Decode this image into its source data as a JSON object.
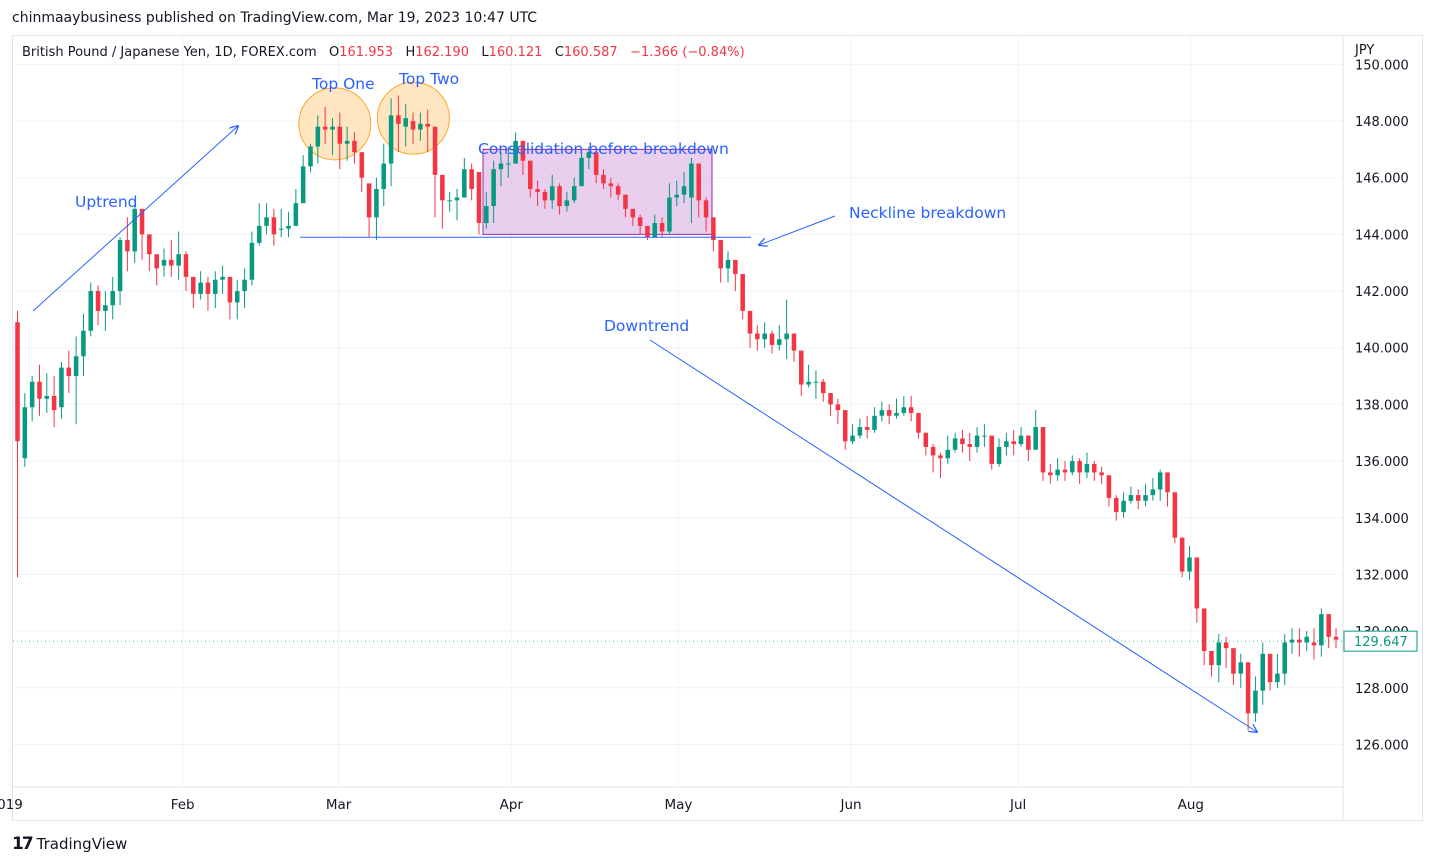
{
  "publisher_line": "chinmaaybusiness published on TradingView.com, Mar 19, 2023 10:47 UTC",
  "symbol": {
    "name": "British Pound / Japanese Yen, 1D, FOREX.com",
    "o_label": "O",
    "o": "161.953",
    "h_label": "H",
    "h": "162.190",
    "l_label": "L",
    "l": "160.121",
    "c_label": "C",
    "c": "160.587",
    "change": "−1.366 (−0.84%)"
  },
  "footer": {
    "logo": "17",
    "brand": "TradingView"
  },
  "colors": {
    "up": "#089981",
    "down": "#f23645",
    "annotation": "#2962ff",
    "circle_fill": "#ffe0b2",
    "circle_stroke": "#ffa726",
    "box_fill": "#e1bee7",
    "box_stroke": "#9c27b0",
    "grid": "#f0f3fa"
  },
  "chart_data": {
    "type": "candlestick",
    "currency": "JPY",
    "ylim": [
      124.5,
      151
    ],
    "y_ticks": [
      "150.000",
      "148.000",
      "146.000",
      "144.000",
      "142.000",
      "140.000",
      "138.000",
      "136.000",
      "134.000",
      "132.000",
      "130.000",
      "128.000",
      "126.000"
    ],
    "x_ticks": [
      {
        "label": "019",
        "date": "2023-01-01"
      },
      {
        "label": "Feb",
        "date": "2023-02-01"
      },
      {
        "label": "Mar",
        "date": "2023-03-01"
      },
      {
        "label": "Apr",
        "date": "2023-04-01"
      },
      {
        "label": "May",
        "date": "2023-05-01"
      },
      {
        "label": "Jun",
        "date": "2023-06-01"
      },
      {
        "label": "Jul",
        "date": "2023-07-01"
      },
      {
        "label": "Aug",
        "date": "2023-08-01"
      }
    ],
    "last_price": "129.647",
    "annotations": {
      "uptrend": "Uptrend",
      "top_one": "Top One",
      "top_two": "Top Two",
      "consolidation": "Consolidation before breakdown",
      "neckline": "Neckline breakdown",
      "downtrend": "Downtrend"
    },
    "neckline_level": 143.9,
    "consolidation_range": [
      144.0,
      147.0
    ],
    "candles": [
      [
        140.9,
        136.7,
        141.3,
        131.9
      ],
      [
        136.1,
        137.9,
        138.4,
        135.8
      ],
      [
        137.9,
        138.8,
        139.0,
        137.4
      ],
      [
        138.8,
        138.2,
        139.4,
        137.6
      ],
      [
        138.2,
        138.3,
        139.1,
        137.7
      ],
      [
        138.3,
        137.8,
        139.0,
        137.2
      ],
      [
        137.9,
        139.3,
        139.5,
        137.5
      ],
      [
        139.3,
        139.0,
        139.9,
        138.4
      ],
      [
        139.0,
        139.7,
        140.4,
        137.3
      ],
      [
        139.7,
        140.6,
        141.2,
        139.0
      ],
      [
        140.6,
        142.0,
        142.3,
        140.4
      ],
      [
        142.0,
        141.3,
        142.2,
        140.8
      ],
      [
        141.3,
        141.5,
        142.0,
        140.6
      ],
      [
        141.5,
        142.0,
        142.5,
        141.0
      ],
      [
        142.0,
        143.8,
        143.9,
        141.5
      ],
      [
        143.8,
        143.4,
        144.6,
        142.7
      ],
      [
        143.4,
        144.9,
        145.0,
        143.0
      ],
      [
        144.9,
        144.0,
        144.9,
        143.1
      ],
      [
        144.0,
        143.3,
        143.7,
        142.7
      ],
      [
        143.3,
        142.8,
        143.2,
        142.2
      ],
      [
        142.9,
        143.1,
        143.5,
        142.5
      ],
      [
        143.1,
        142.9,
        143.8,
        142.5
      ],
      [
        142.9,
        143.3,
        144.1,
        142.4
      ],
      [
        143.3,
        142.5,
        143.4,
        142.0
      ],
      [
        142.5,
        141.9,
        142.3,
        141.4
      ],
      [
        141.9,
        142.3,
        142.7,
        141.7
      ],
      [
        142.3,
        141.9,
        142.5,
        141.3
      ],
      [
        141.9,
        142.4,
        142.7,
        141.4
      ],
      [
        142.4,
        142.5,
        142.9,
        141.9
      ],
      [
        142.5,
        141.6,
        141.8,
        141.0
      ],
      [
        141.6,
        142.0,
        142.4,
        141.0
      ],
      [
        142.0,
        142.4,
        142.8,
        141.4
      ],
      [
        142.4,
        143.7,
        144.1,
        142.2
      ],
      [
        143.7,
        144.3,
        145.1,
        143.6
      ],
      [
        144.3,
        144.6,
        145.1,
        144.0
      ],
      [
        144.6,
        144.0,
        144.9,
        143.6
      ],
      [
        144.2,
        144.2,
        144.9,
        143.9
      ],
      [
        144.2,
        144.3,
        144.8,
        143.9
      ],
      [
        144.3,
        145.1,
        145.6,
        144.8
      ],
      [
        145.1,
        146.4,
        146.8,
        145.1
      ],
      [
        146.4,
        147.1,
        147.2,
        146.2
      ],
      [
        147.1,
        147.8,
        148.2,
        146.5
      ],
      [
        147.8,
        147.7,
        148.5,
        147.2
      ],
      [
        147.7,
        147.8,
        148.1,
        146.8
      ],
      [
        147.8,
        147.2,
        148.3,
        146.3
      ],
      [
        147.2,
        147.3,
        147.8,
        146.6
      ],
      [
        147.3,
        146.9,
        147.6,
        146.5
      ],
      [
        146.9,
        146.0,
        146.3,
        145.5
      ],
      [
        145.8,
        144.6,
        145.6,
        143.9
      ],
      [
        144.6,
        145.6,
        146.0,
        143.8
      ],
      [
        145.6,
        146.5,
        147.2,
        145.0
      ],
      [
        146.5,
        148.2,
        148.8,
        145.7
      ],
      [
        148.2,
        147.9,
        148.9,
        146.9
      ],
      [
        147.8,
        148.1,
        148.6,
        147.1
      ],
      [
        148.0,
        147.7,
        148.3,
        147.2
      ],
      [
        147.7,
        147.9,
        148.3,
        147.3
      ],
      [
        147.9,
        147.8,
        148.4,
        146.9
      ],
      [
        147.8,
        146.1,
        146.6,
        144.6
      ],
      [
        146.1,
        145.2,
        145.9,
        144.2
      ],
      [
        145.2,
        145.2,
        145.5,
        144.8
      ],
      [
        145.2,
        145.3,
        145.6,
        144.5
      ],
      [
        145.3,
        146.3,
        146.7,
        145.6
      ],
      [
        146.3,
        145.6,
        146.5,
        145.2
      ],
      [
        146.2,
        144.4,
        144.9,
        144.0
      ],
      [
        144.4,
        145.0,
        145.5,
        144.2
      ],
      [
        145.0,
        146.3,
        146.6,
        144.4
      ],
      [
        146.3,
        146.5,
        146.9,
        145.7
      ],
      [
        146.5,
        146.5,
        147.1,
        146.0
      ],
      [
        146.5,
        147.3,
        147.6,
        146.7
      ],
      [
        147.3,
        146.6,
        147.1,
        146.1
      ],
      [
        146.6,
        145.6,
        146.2,
        145.3
      ],
      [
        145.6,
        145.5,
        145.9,
        145.0
      ],
      [
        145.5,
        145.2,
        145.6,
        144.9
      ],
      [
        145.2,
        145.7,
        146.1,
        144.9
      ],
      [
        145.7,
        145.0,
        145.8,
        144.7
      ],
      [
        145.0,
        145.2,
        145.5,
        144.8
      ],
      [
        145.2,
        145.7,
        146.0,
        145.1
      ],
      [
        145.7,
        146.7,
        146.9,
        146.1
      ],
      [
        146.7,
        146.9,
        147.1,
        146.3
      ],
      [
        146.9,
        146.1,
        146.4,
        145.8
      ],
      [
        146.1,
        145.8,
        146.3,
        145.6
      ],
      [
        145.8,
        145.7,
        146.0,
        145.3
      ],
      [
        145.7,
        145.4,
        145.8,
        145.2
      ],
      [
        145.4,
        144.9,
        145.1,
        144.6
      ],
      [
        144.9,
        144.6,
        144.9,
        144.3
      ],
      [
        144.6,
        144.3,
        144.7,
        144.0
      ],
      [
        144.3,
        143.9,
        144.3,
        143.8
      ],
      [
        143.9,
        144.4,
        144.7,
        143.9
      ],
      [
        144.4,
        144.1,
        144.6,
        143.9
      ],
      [
        144.1,
        145.3,
        145.8,
        144.0
      ],
      [
        145.3,
        145.4,
        145.9,
        145.0
      ],
      [
        145.4,
        145.7,
        146.2,
        145.1
      ],
      [
        145.3,
        146.5,
        146.7,
        144.4
      ],
      [
        146.5,
        145.2,
        145.8,
        144.6
      ],
      [
        145.2,
        144.6,
        145.3,
        144.1
      ],
      [
        144.6,
        143.8,
        144.2,
        143.4
      ],
      [
        143.8,
        142.8,
        143.7,
        142.3
      ],
      [
        142.8,
        143.1,
        143.4,
        142.3
      ],
      [
        143.1,
        142.6,
        143.1,
        142.0
      ],
      [
        142.6,
        141.3,
        141.9,
        141.0
      ],
      [
        141.3,
        140.5,
        140.8,
        140.0
      ],
      [
        140.5,
        140.3,
        140.8,
        139.9
      ],
      [
        140.3,
        140.5,
        140.9,
        140.0
      ],
      [
        140.5,
        140.1,
        140.6,
        139.8
      ],
      [
        140.1,
        140.3,
        140.8,
        139.9
      ],
      [
        140.3,
        140.5,
        141.7,
        139.6
      ],
      [
        140.5,
        139.9,
        140.4,
        139.5
      ],
      [
        139.9,
        138.7,
        139.4,
        138.3
      ],
      [
        138.7,
        138.8,
        139.4,
        138.6
      ],
      [
        138.8,
        138.8,
        139.2,
        138.2
      ],
      [
        138.8,
        138.4,
        138.9,
        138.1
      ],
      [
        138.4,
        138.0,
        138.4,
        137.6
      ],
      [
        138.0,
        137.8,
        138.2,
        137.3
      ],
      [
        137.8,
        136.7,
        137.3,
        136.4
      ],
      [
        136.7,
        136.9,
        137.3,
        136.6
      ],
      [
        136.9,
        137.2,
        137.5,
        136.8
      ],
      [
        137.2,
        137.1,
        137.6,
        136.8
      ],
      [
        137.1,
        137.6,
        137.9,
        137.0
      ],
      [
        137.6,
        137.8,
        138.1,
        137.4
      ],
      [
        137.8,
        137.6,
        138.0,
        137.3
      ],
      [
        137.6,
        137.7,
        138.2,
        137.5
      ],
      [
        137.7,
        137.9,
        138.3,
        137.6
      ],
      [
        137.9,
        137.7,
        138.3,
        137.4
      ],
      [
        137.7,
        137.0,
        137.4,
        136.8
      ],
      [
        137.0,
        136.5,
        137.0,
        136.2
      ],
      [
        136.5,
        136.2,
        136.6,
        135.6
      ],
      [
        136.2,
        136.1,
        136.3,
        135.4
      ],
      [
        136.1,
        136.4,
        136.9,
        135.9
      ],
      [
        136.4,
        136.8,
        137.0,
        136.3
      ],
      [
        136.8,
        136.6,
        137.1,
        136.3
      ],
      [
        136.6,
        136.5,
        137.0,
        136.0
      ],
      [
        136.5,
        136.9,
        137.2,
        136.3
      ],
      [
        136.9,
        136.9,
        137.3,
        136.5
      ],
      [
        136.9,
        135.9,
        136.3,
        135.7
      ],
      [
        135.9,
        136.5,
        136.8,
        135.8
      ],
      [
        136.5,
        136.7,
        137.0,
        136.2
      ],
      [
        136.7,
        136.6,
        137.1,
        136.2
      ],
      [
        136.6,
        136.9,
        137.2,
        136.5
      ],
      [
        136.9,
        136.4,
        136.9,
        136.0
      ],
      [
        136.4,
        137.2,
        137.8,
        136.4
      ],
      [
        137.2,
        135.6,
        136.0,
        135.3
      ],
      [
        135.6,
        135.5,
        135.9,
        135.2
      ],
      [
        135.5,
        135.7,
        136.1,
        135.3
      ],
      [
        135.7,
        135.6,
        136.0,
        135.3
      ],
      [
        135.6,
        136.0,
        136.2,
        135.5
      ],
      [
        136.0,
        135.6,
        136.1,
        135.2
      ],
      [
        135.6,
        135.9,
        136.3,
        135.4
      ],
      [
        135.9,
        135.6,
        136.0,
        135.3
      ],
      [
        135.6,
        135.5,
        135.8,
        135.2
      ],
      [
        135.5,
        134.7,
        135.2,
        134.4
      ],
      [
        134.7,
        134.2,
        134.8,
        133.9
      ],
      [
        134.2,
        134.6,
        134.9,
        134.0
      ],
      [
        134.6,
        134.8,
        135.1,
        134.5
      ],
      [
        134.8,
        134.6,
        135.0,
        134.3
      ],
      [
        134.6,
        134.8,
        135.2,
        134.4
      ],
      [
        134.8,
        135.0,
        135.4,
        134.6
      ],
      [
        135.0,
        135.6,
        135.7,
        134.6
      ],
      [
        135.6,
        134.9,
        135.3,
        134.4
      ],
      [
        134.9,
        133.3,
        134.1,
        133.1
      ],
      [
        133.3,
        132.1,
        132.8,
        131.9
      ],
      [
        132.1,
        132.6,
        133.0,
        131.8
      ],
      [
        132.6,
        130.8,
        131.4,
        130.3
      ],
      [
        130.8,
        129.3,
        130.0,
        128.8
      ],
      [
        129.3,
        128.8,
        129.1,
        128.4
      ],
      [
        128.8,
        129.6,
        129.9,
        128.2
      ],
      [
        129.6,
        129.4,
        129.8,
        128.7
      ],
      [
        129.4,
        128.5,
        129.0,
        128.1
      ],
      [
        128.5,
        128.9,
        129.2,
        128.0
      ],
      [
        128.9,
        127.1,
        127.6,
        126.5
      ],
      [
        127.1,
        127.9,
        128.4,
        126.8
      ],
      [
        127.9,
        129.2,
        129.6,
        127.4
      ],
      [
        129.2,
        128.2,
        128.8,
        127.9
      ],
      [
        128.2,
        128.5,
        129.2,
        128.0
      ],
      [
        128.5,
        129.6,
        129.9,
        128.1
      ],
      [
        129.6,
        129.7,
        130.1,
        129.2
      ],
      [
        129.7,
        129.6,
        130.1,
        129.1
      ],
      [
        129.6,
        129.8,
        130.0,
        129.3
      ],
      [
        129.6,
        129.5,
        130.1,
        129.0
      ],
      [
        129.5,
        130.6,
        130.8,
        129.1
      ],
      [
        130.6,
        129.8,
        130.3,
        129.4
      ],
      [
        129.8,
        129.7,
        130.1,
        129.4
      ]
    ]
  }
}
